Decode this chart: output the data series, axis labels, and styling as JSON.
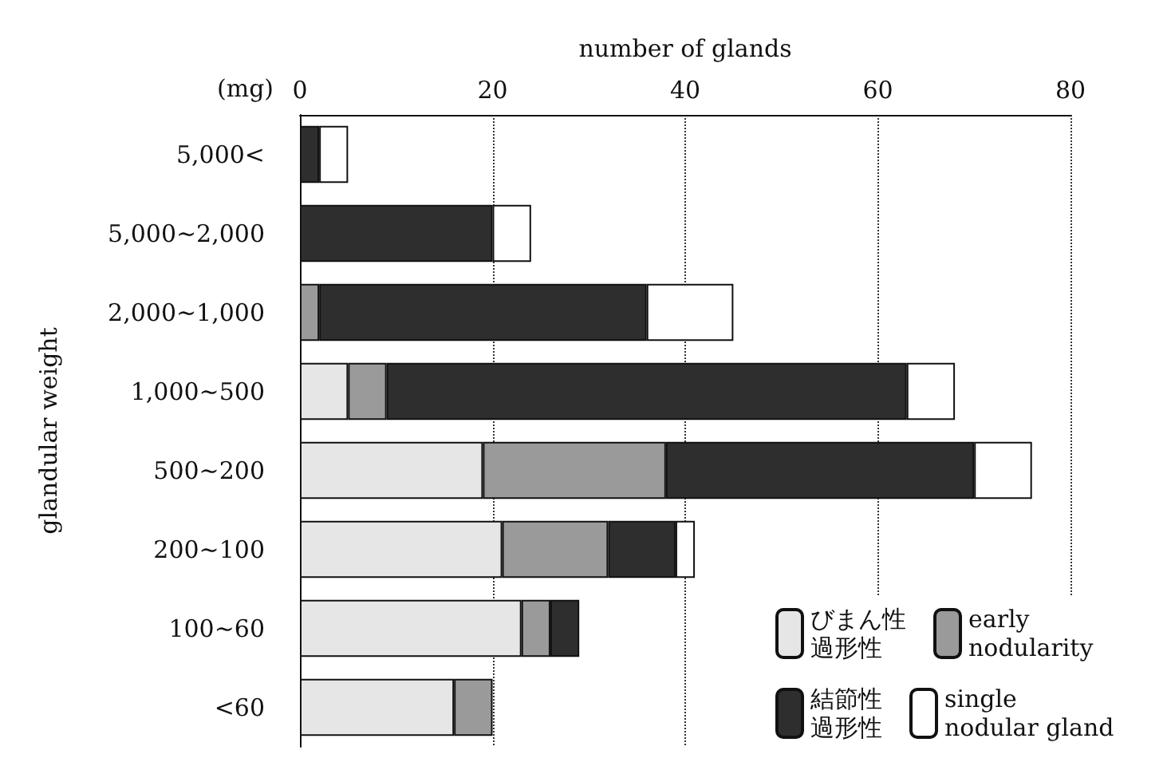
{
  "chart_data": {
    "type": "bar",
    "orientation": "horizontal",
    "stacked": true,
    "xlabel": "number of glands",
    "ylabel": "glandular weight",
    "annotations": [
      "(mg)"
    ],
    "categories": [
      "5,000<",
      "5,000~2,000",
      "2,000~1,000",
      "1,000~500",
      "500~200",
      "200~100",
      "100~60",
      "<60"
    ],
    "series": [
      {
        "name": "びまん性過形性",
        "color": "#e6e6e6",
        "values": [
          0,
          0,
          0,
          5,
          19,
          21,
          23,
          16
        ]
      },
      {
        "name": "early\nnodularity",
        "color": "#9a9a9a",
        "values": [
          0,
          0,
          2,
          4,
          19,
          11,
          3,
          4
        ]
      },
      {
        "name": "結節性過形性",
        "color": "#2e2e2e",
        "values": [
          2,
          20,
          34,
          54,
          32,
          7,
          3,
          0
        ]
      },
      {
        "name": "single\nnodular gland",
        "color": "#ffffff",
        "values": [
          3,
          4,
          9,
          5,
          6,
          2,
          0,
          0
        ]
      }
    ],
    "xlim": [
      0,
      80
    ],
    "xticks": [
      0,
      20,
      40,
      60,
      80
    ],
    "grid": "x",
    "legend": "bottom right"
  }
}
